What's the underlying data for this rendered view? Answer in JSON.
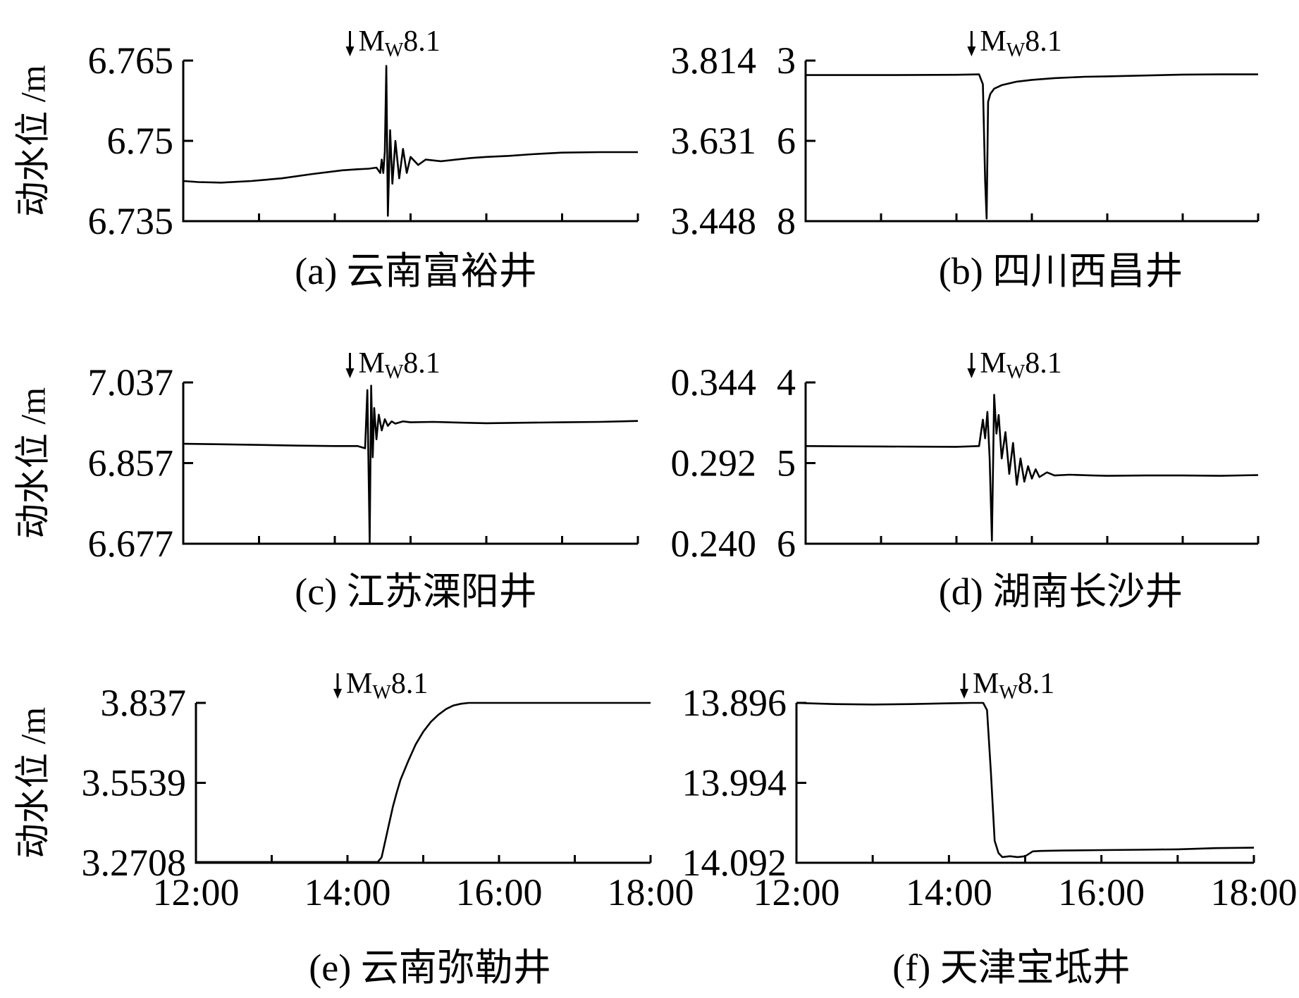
{
  "chart_data": [
    {
      "id": "a",
      "type": "line",
      "caption": "(a) 云南富裕井",
      "ylabel": "动水位 /m",
      "yticks": [
        "6.765",
        "6.75",
        "6.735"
      ],
      "ylim": [
        6.735,
        6.765
      ],
      "y_inverted": false,
      "xlim": [
        12,
        18
      ],
      "x_unit": "hour",
      "xticks": [],
      "event": {
        "label": "M",
        "sub": "W",
        "mag": "8.1",
        "x": 14.2
      },
      "series": [
        {
          "x": [
            12.0,
            12.2,
            12.5,
            12.9,
            13.3,
            13.7,
            14.1,
            14.3,
            14.45,
            14.55,
            14.6,
            14.62,
            14.64,
            14.66,
            14.68,
            14.7,
            14.73,
            14.76,
            14.8,
            14.85,
            14.9,
            14.95,
            15.0,
            15.1,
            15.2,
            15.4,
            15.6,
            15.8,
            16.0,
            16.3,
            16.6,
            17.0,
            17.5,
            18.0
          ],
          "y": [
            6.7425,
            6.7423,
            6.7422,
            6.7425,
            6.743,
            6.7438,
            6.7445,
            6.7447,
            6.7448,
            6.745,
            6.744,
            6.7465,
            6.744,
            6.748,
            6.764,
            6.736,
            6.752,
            6.742,
            6.75,
            6.743,
            6.7485,
            6.744,
            6.747,
            6.7455,
            6.7465,
            6.7462,
            6.7465,
            6.7468,
            6.747,
            6.7472,
            6.7475,
            6.7478,
            6.7479,
            6.7479
          ]
        }
      ]
    },
    {
      "id": "b",
      "type": "line",
      "caption": "(b) 四川西昌井",
      "ylabel": "",
      "yticks": [
        "3.814",
        "3.631",
        "3.448"
      ],
      "ylim": [
        3.448,
        3.814
      ],
      "y_inverted": false,
      "yticks_right": [
        "3",
        "6",
        "8"
      ],
      "xlim": [
        12,
        18
      ],
      "x_unit": "hour",
      "xticks": [],
      "event": {
        "label": "M",
        "sub": "W",
        "mag": "8.1",
        "x": 14.2
      },
      "series": [
        {
          "x": [
            12.0,
            13.0,
            14.0,
            14.3,
            14.35,
            14.38,
            14.4,
            14.42,
            14.45,
            14.5,
            14.6,
            14.8,
            15.0,
            15.3,
            15.7,
            16.0,
            16.5,
            17.0,
            17.5,
            18.0
          ],
          "y": [
            3.781,
            3.781,
            3.7815,
            3.7825,
            3.76,
            3.54,
            3.454,
            3.72,
            3.738,
            3.75,
            3.758,
            3.766,
            3.77,
            3.774,
            3.777,
            3.778,
            3.78,
            3.782,
            3.7825,
            3.7825
          ]
        }
      ]
    },
    {
      "id": "c",
      "type": "line",
      "caption": "(c) 江苏溧阳井",
      "ylabel": "动水位 /m",
      "yticks": [
        "7.037",
        "6.857",
        "6.677"
      ],
      "ylim": [
        6.677,
        7.037
      ],
      "y_inverted": false,
      "xlim": [
        12,
        18
      ],
      "x_unit": "hour",
      "xticks": [],
      "event": {
        "label": "M",
        "sub": "W",
        "mag": "8.1",
        "x": 14.2
      },
      "series": [
        {
          "x": [
            12.0,
            12.5,
            13.0,
            13.5,
            14.0,
            14.3,
            14.4,
            14.43,
            14.46,
            14.48,
            14.5,
            14.52,
            14.55,
            14.58,
            14.62,
            14.66,
            14.7,
            14.75,
            14.8,
            14.9,
            15.0,
            15.3,
            15.7,
            16.0,
            16.5,
            17.0,
            17.5,
            18.0
          ],
          "y": [
            6.9,
            6.899,
            6.8975,
            6.896,
            6.895,
            6.895,
            6.89,
            7.02,
            6.679,
            7.03,
            6.87,
            6.98,
            6.91,
            6.965,
            6.93,
            6.955,
            6.94,
            6.95,
            6.945,
            6.95,
            6.948,
            6.949,
            6.947,
            6.946,
            6.947,
            6.948,
            6.949,
            6.951
          ]
        }
      ]
    },
    {
      "id": "d",
      "type": "line",
      "caption": "(d) 湖南长沙井",
      "ylabel": "",
      "yticks": [
        "0.344",
        "0.292",
        "0.240"
      ],
      "ylim": [
        0.24,
        0.344
      ],
      "y_inverted": false,
      "yticks_right": [
        "4",
        "5",
        "6"
      ],
      "xlim": [
        12,
        18
      ],
      "x_unit": "hour",
      "xticks": [],
      "event": {
        "label": "M",
        "sub": "W",
        "mag": "8.1",
        "x": 14.2
      },
      "series": [
        {
          "x": [
            12.0,
            12.5,
            13.0,
            13.5,
            14.0,
            14.3,
            14.35,
            14.38,
            14.41,
            14.44,
            14.47,
            14.5,
            14.53,
            14.56,
            14.6,
            14.65,
            14.7,
            14.75,
            14.8,
            14.85,
            14.9,
            14.95,
            15.0,
            15.05,
            15.1,
            15.2,
            15.3,
            15.5,
            15.8,
            16.0,
            16.5,
            17.0,
            17.5,
            18.0
          ],
          "y": [
            0.303,
            0.3028,
            0.3027,
            0.3026,
            0.3025,
            0.303,
            0.32,
            0.308,
            0.325,
            0.295,
            0.242,
            0.336,
            0.311,
            0.323,
            0.295,
            0.312,
            0.285,
            0.305,
            0.278,
            0.295,
            0.28,
            0.29,
            0.282,
            0.288,
            0.283,
            0.286,
            0.284,
            0.2845,
            0.284,
            0.2838,
            0.284,
            0.284,
            0.2838,
            0.2843
          ]
        }
      ]
    },
    {
      "id": "e",
      "type": "line",
      "caption": "(e) 云南弥勒井",
      "ylabel": "动水位 /m",
      "yticks": [
        "3.837",
        "3.5539",
        "3.2708"
      ],
      "ylim": [
        3.2708,
        3.837
      ],
      "y_inverted": false,
      "xlim": [
        12,
        18
      ],
      "x_unit": "hour",
      "xticks": [
        "12:00",
        "14:00",
        "16:00",
        "18:00"
      ],
      "event": {
        "label": "M",
        "sub": "W",
        "mag": "8.1",
        "x": 13.87
      },
      "series": [
        {
          "x": [
            12.0,
            13.0,
            14.0,
            14.4,
            14.45,
            14.5,
            14.55,
            14.6,
            14.65,
            14.7,
            14.8,
            14.9,
            15.0,
            15.1,
            15.2,
            15.3,
            15.4,
            15.5,
            15.6,
            16.0,
            16.5,
            17.0,
            17.5,
            18.0
          ],
          "y": [
            3.2735,
            3.2735,
            3.2735,
            3.2738,
            3.29,
            3.35,
            3.41,
            3.47,
            3.52,
            3.565,
            3.63,
            3.69,
            3.735,
            3.77,
            3.795,
            3.815,
            3.828,
            3.834,
            3.837,
            3.837,
            3.837,
            3.837,
            3.837,
            3.837
          ]
        }
      ]
    },
    {
      "id": "f",
      "type": "line",
      "caption": "(f) 天津宝坻井",
      "ylabel": "",
      "yticks": [
        "13.896",
        "13.994",
        "14.092"
      ],
      "ylim": [
        13.896,
        14.092
      ],
      "y_inverted": true,
      "xlim": [
        12,
        18
      ],
      "x_unit": "hour",
      "xticks": [
        "12:00",
        "14:00",
        "16:00",
        "18:00"
      ],
      "event": {
        "label": "M",
        "sub": "W",
        "mag": "8.1",
        "x": 14.2
      },
      "series": [
        {
          "x": [
            12.0,
            12.5,
            13.0,
            13.5,
            14.0,
            14.3,
            14.45,
            14.5,
            14.55,
            14.6,
            14.65,
            14.7,
            14.8,
            14.9,
            15.0,
            15.1,
            15.2,
            15.5,
            16.0,
            16.5,
            17.0,
            17.5,
            18.0
          ],
          "y": [
            13.896,
            13.8975,
            13.898,
            13.8975,
            13.8965,
            13.896,
            13.896,
            13.905,
            13.98,
            14.065,
            14.08,
            14.085,
            14.084,
            14.085,
            14.084,
            14.078,
            14.0775,
            14.077,
            14.0765,
            14.076,
            14.0755,
            14.074,
            14.0735
          ]
        }
      ]
    }
  ]
}
